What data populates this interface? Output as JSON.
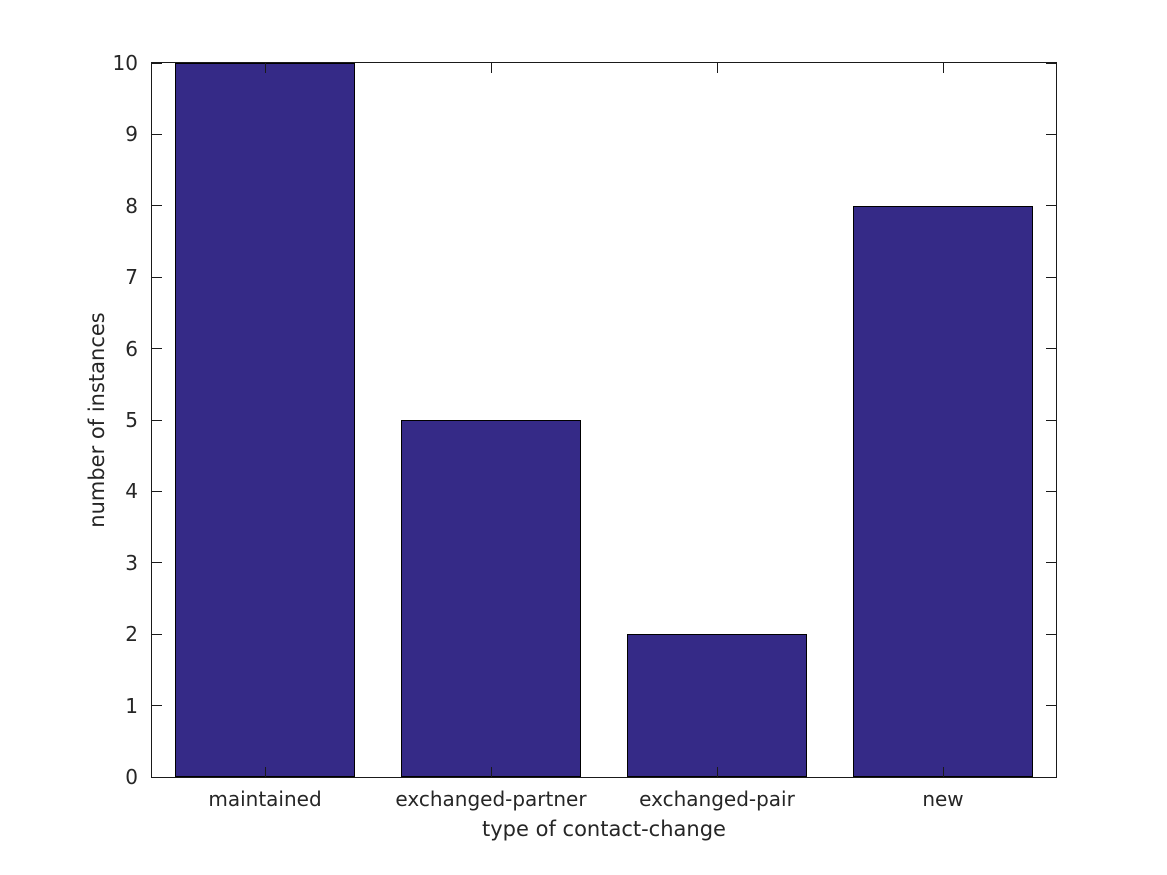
{
  "chart_data": {
    "type": "bar",
    "categories": [
      "maintained",
      "exchanged-partner",
      "exchanged-pair",
      "new"
    ],
    "values": [
      10,
      5,
      2,
      8
    ],
    "title": "",
    "xlabel": "type of contact-change",
    "ylabel": "number of instances",
    "ylim": [
      0,
      10
    ],
    "yticks": [
      0,
      1,
      2,
      3,
      4,
      5,
      6,
      7,
      8,
      9,
      10
    ],
    "bar_width_fraction": 0.8,
    "grid": false,
    "legend": null,
    "frame": "box-on-all-sides",
    "tick_direction": "in",
    "colors": {
      "bar_fill": "#352A87",
      "bar_edge": "#000000",
      "axis_line": "#1A1A1A",
      "text": "#262626",
      "background": "#FFFFFF"
    }
  }
}
